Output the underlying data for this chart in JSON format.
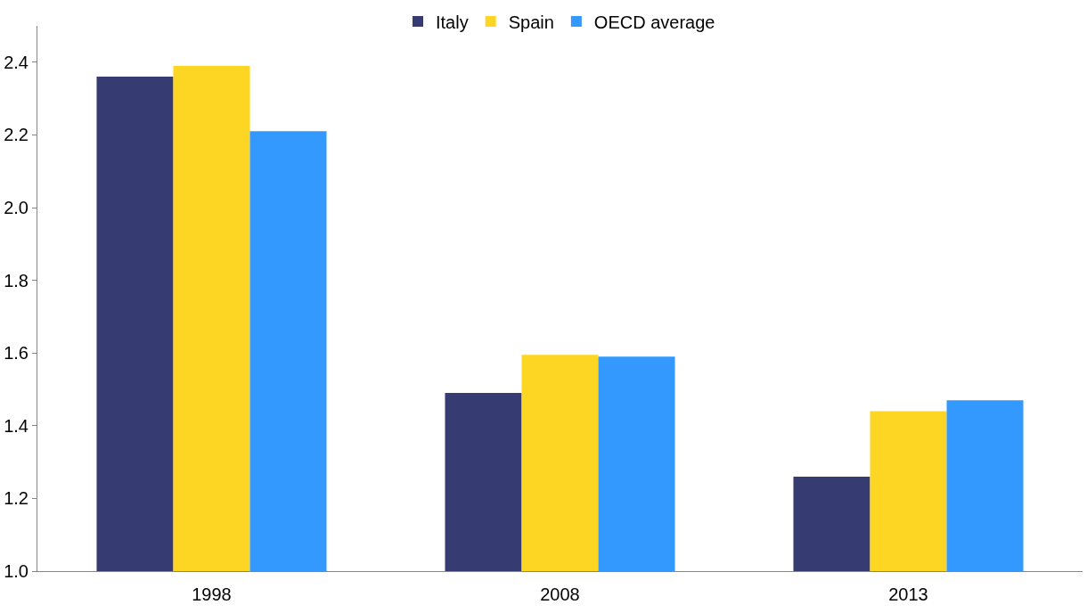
{
  "chart_data": {
    "type": "bar",
    "categories": [
      "1998",
      "2008",
      "2013"
    ],
    "series": [
      {
        "name": "Italy",
        "color": "#363b72",
        "values": [
          2.36,
          1.49,
          1.26
        ]
      },
      {
        "name": "Spain",
        "color": "#fdd523",
        "values": [
          2.39,
          1.595,
          1.44
        ]
      },
      {
        "name": "OECD average",
        "color": "#3399fe",
        "values": [
          2.21,
          1.59,
          1.47
        ]
      }
    ],
    "ylim": [
      1.0,
      2.5
    ],
    "yticks": [
      {
        "value": 1.0,
        "label": "1.0"
      },
      {
        "value": 1.2,
        "label": "1.2"
      },
      {
        "value": 1.4,
        "label": "1.4"
      },
      {
        "value": 1.6,
        "label": "1.6"
      },
      {
        "value": 1.8,
        "label": "1.8"
      },
      {
        "value": 2.0,
        "label": "2.0"
      },
      {
        "value": 2.2,
        "label": "2.2"
      },
      {
        "value": 2.4,
        "label": "2.4"
      }
    ],
    "legend": "top"
  }
}
